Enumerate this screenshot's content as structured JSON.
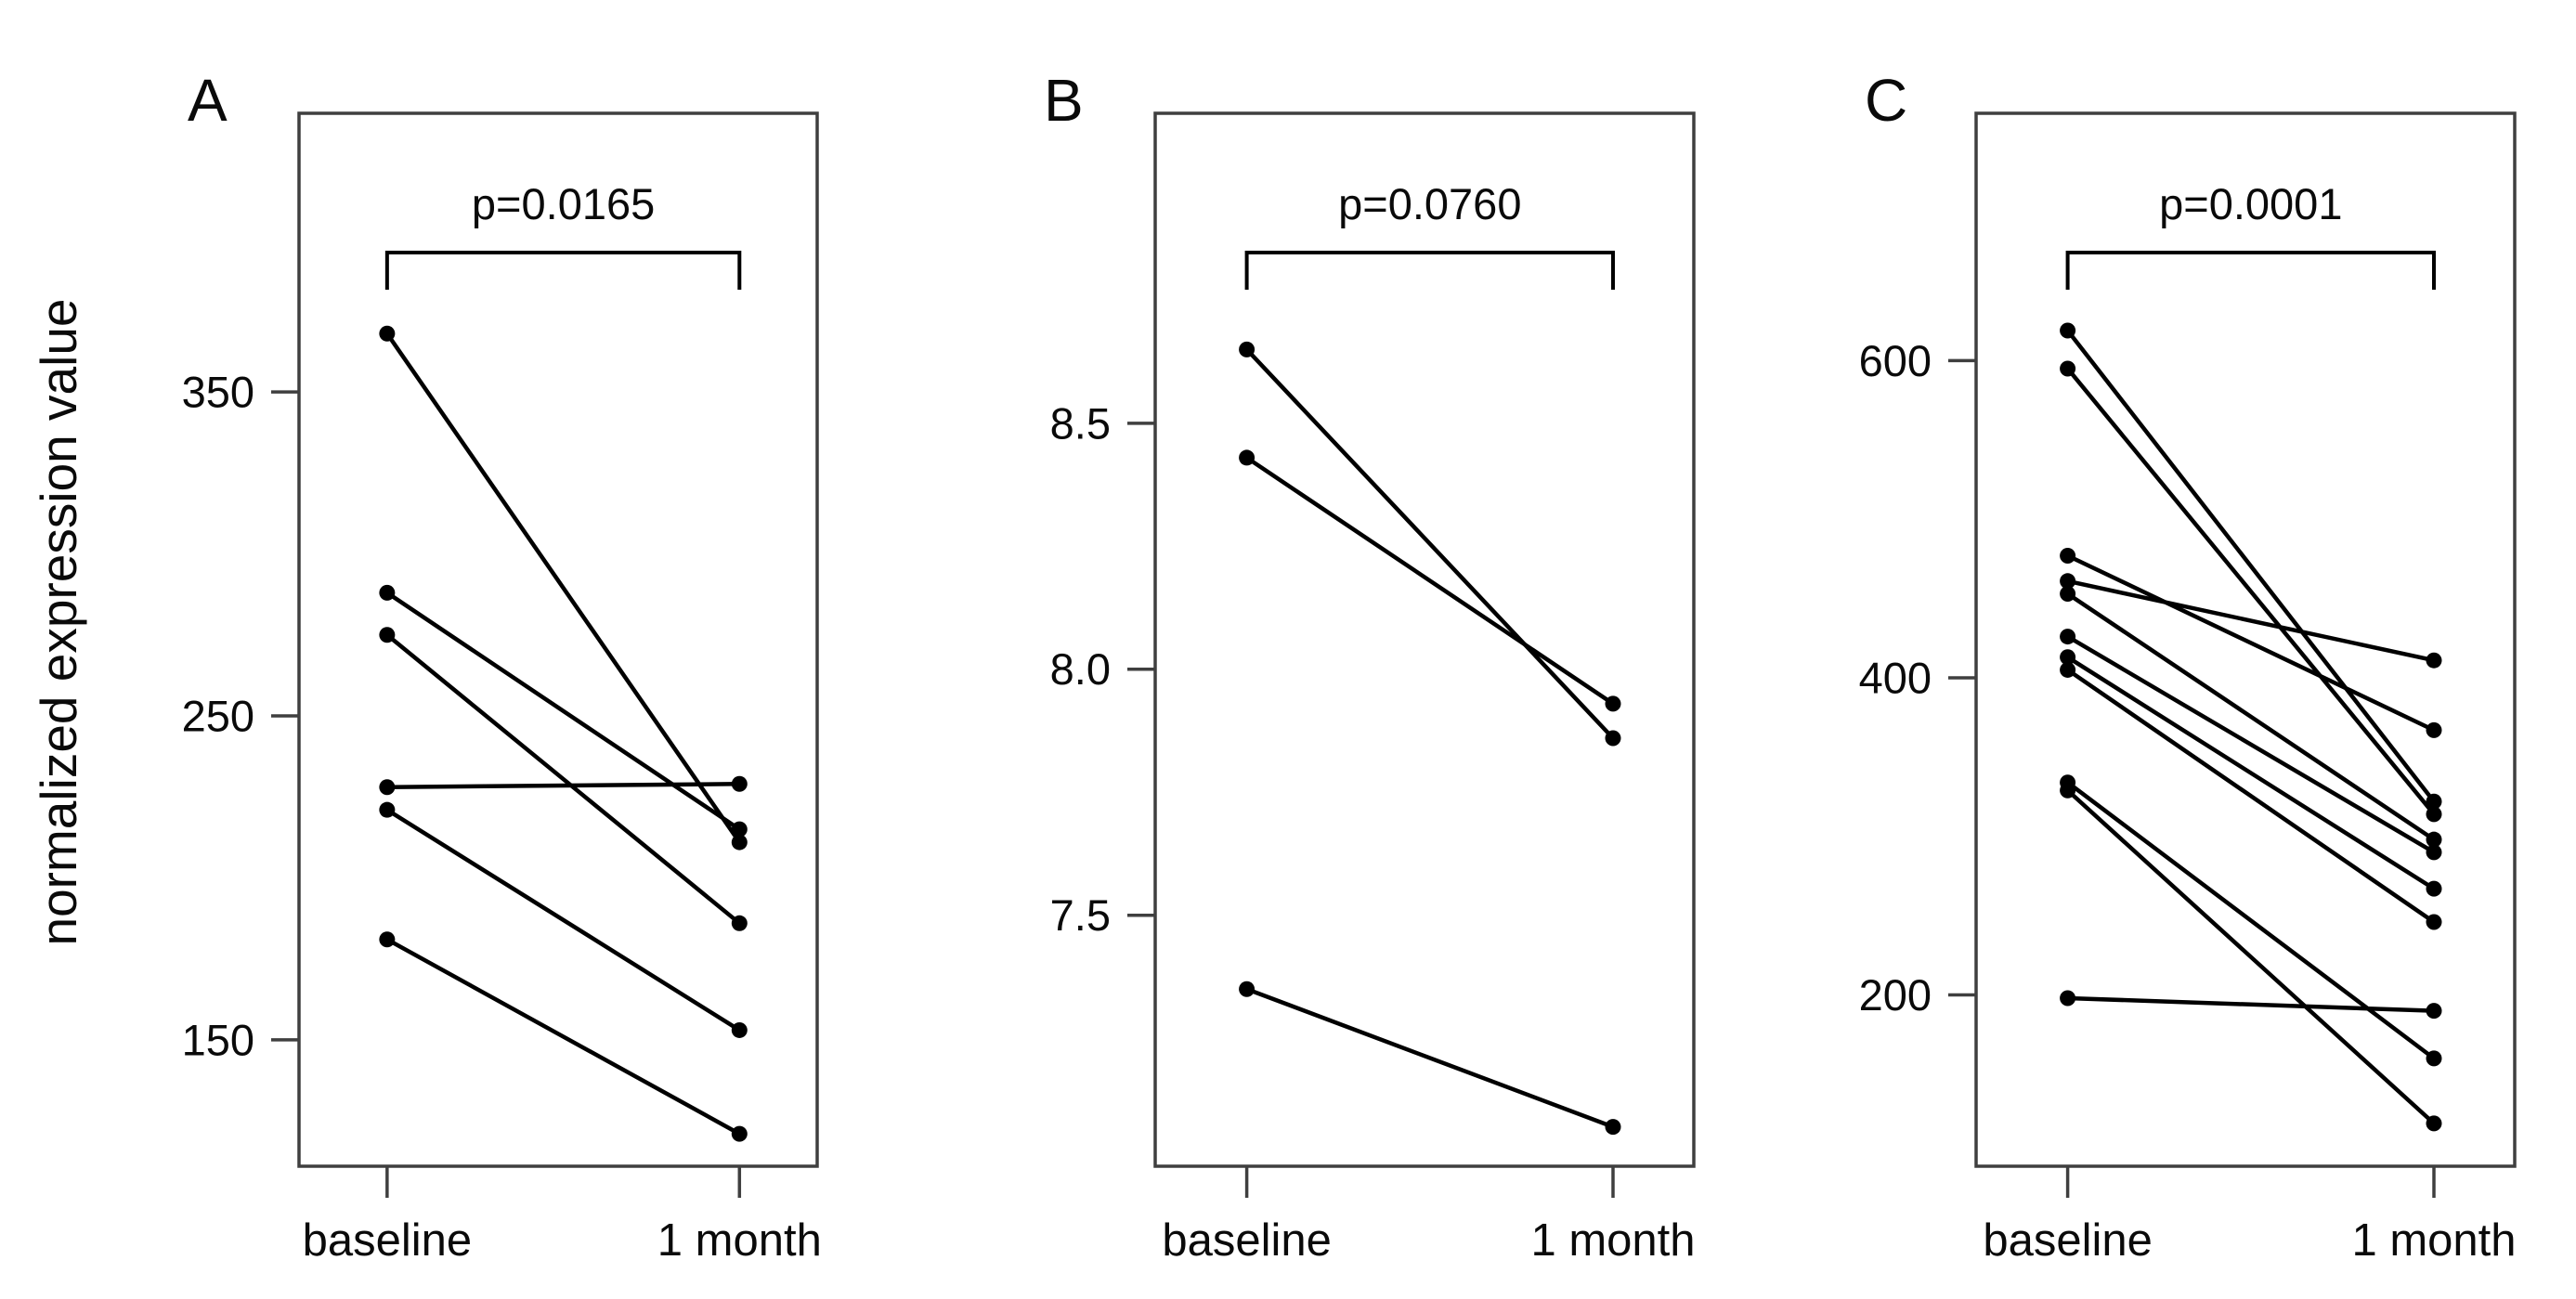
{
  "figure": {
    "ylabel": "normalized expression value",
    "x_categories": [
      "baseline",
      "1 month"
    ],
    "ink_color": "#000000",
    "frame_color": "#3f3f3f",
    "background": "#ffffff"
  },
  "chart_data": [
    {
      "type": "line",
      "panel_label": "A",
      "p_label": "p=0.0165",
      "xlabel": "",
      "ylabel": "normalized expression value",
      "x_categories": [
        "baseline",
        "1 month"
      ],
      "yticks": [
        {
          "label": "150",
          "value": 150
        },
        {
          "label": "250",
          "value": 250
        },
        {
          "label": "350",
          "value": 350
        }
      ],
      "ylim": [
        111,
        436
      ],
      "grid": false,
      "series_note": "paired values [baseline, 1 month] per subject",
      "pairs": [
        [
          368,
          211
        ],
        [
          288,
          215
        ],
        [
          275,
          186
        ],
        [
          228,
          229
        ],
        [
          221,
          153
        ],
        [
          181,
          121
        ]
      ]
    },
    {
      "type": "line",
      "panel_label": "B",
      "p_label": "p=0.0760",
      "xlabel": "",
      "x_categories": [
        "baseline",
        "1 month"
      ],
      "yticks": [
        {
          "label": "7.5",
          "value": 7.5
        },
        {
          "label": "8.0",
          "value": 8.0
        },
        {
          "label": "8.5",
          "value": 8.5
        }
      ],
      "ylim": [
        6.99,
        9.13
      ],
      "grid": false,
      "series_note": "paired values [baseline, 1 month] per subject",
      "pairs": [
        [
          8.65,
          7.86
        ],
        [
          8.43,
          7.93
        ],
        [
          7.35,
          7.07
        ]
      ]
    },
    {
      "type": "line",
      "panel_label": "C",
      "p_label": "p=0.0001",
      "xlabel": "",
      "x_categories": [
        "baseline",
        "1 month"
      ],
      "yticks": [
        {
          "label": "200",
          "value": 200
        },
        {
          "label": "400",
          "value": 400
        },
        {
          "label": "600",
          "value": 600
        }
      ],
      "ylim": [
        92,
        756
      ],
      "grid": false,
      "series_note": "paired values [baseline, 1 month] per subject",
      "pairs": [
        [
          619,
          322
        ],
        [
          595,
          314
        ],
        [
          477,
          367
        ],
        [
          461,
          411
        ],
        [
          453,
          298
        ],
        [
          426,
          290
        ],
        [
          413,
          267
        ],
        [
          405,
          246
        ],
        [
          334,
          160
        ],
        [
          329,
          119
        ],
        [
          198,
          190
        ]
      ]
    }
  ]
}
